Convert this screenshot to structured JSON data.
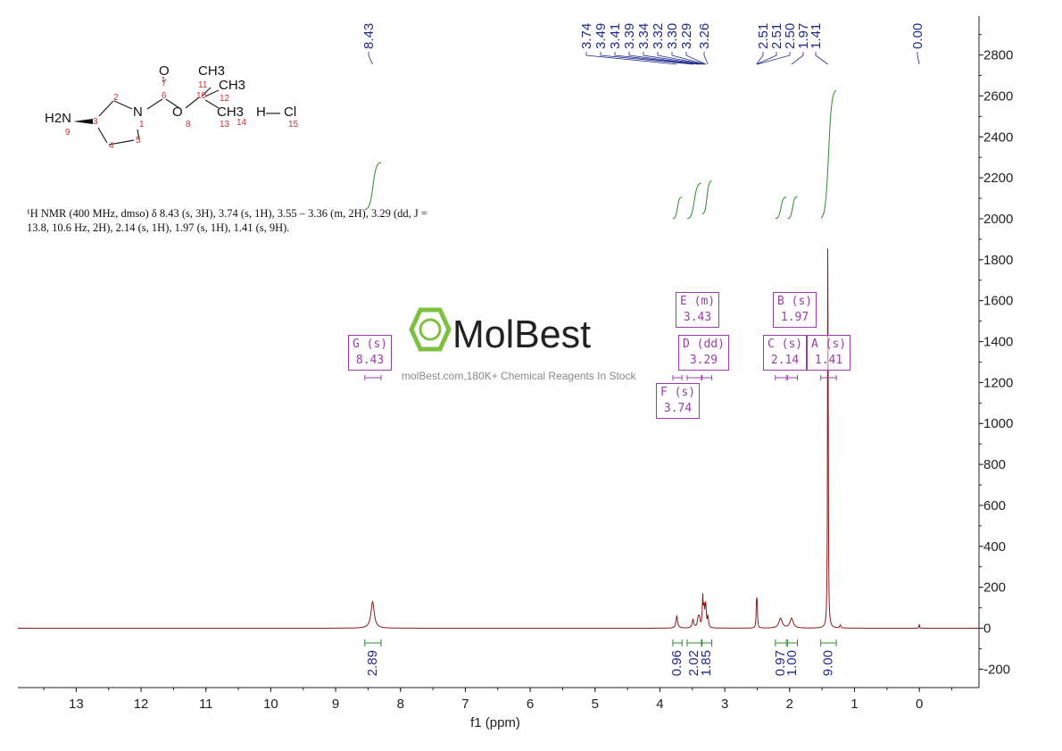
{
  "chart_data": {
    "type": "line",
    "title": "",
    "xlabel": "f1 (ppm)",
    "ylabel": "",
    "xlim": [
      13.9,
      -0.92
    ],
    "ylim": [
      -290,
      2990
    ],
    "x_reversed": true,
    "x_ticks": [
      "13",
      "12",
      "11",
      "10",
      "9",
      "8",
      "7",
      "6",
      "5",
      "4",
      "3",
      "2",
      "1",
      "0"
    ],
    "y_ticks": [
      "-200",
      "0",
      "200",
      "400",
      "600",
      "800",
      "1000",
      "1200",
      "1400",
      "1600",
      "1800",
      "2000",
      "2200",
      "2400",
      "2600",
      "2800"
    ],
    "grid": false,
    "colors": {
      "spectrum": "#8b1a1a",
      "integral": "#2e8b2e",
      "peak_label": "#1f2a8c",
      "multiplet_box": "#9b3fa8",
      "axis": "#222222"
    },
    "peaks": [
      {
        "ppm": 8.43,
        "height": 130,
        "width": 0.03
      },
      {
        "ppm": 3.74,
        "height": 60,
        "width": 0.015
      },
      {
        "ppm": 3.49,
        "height": 40,
        "width": 0.015
      },
      {
        "ppm": 3.41,
        "height": 45,
        "width": 0.015
      },
      {
        "ppm": 3.39,
        "height": 40,
        "width": 0.012
      },
      {
        "ppm": 3.34,
        "height": 150,
        "width": 0.008
      },
      {
        "ppm": 3.32,
        "height": 90,
        "width": 0.008
      },
      {
        "ppm": 3.3,
        "height": 80,
        "width": 0.008
      },
      {
        "ppm": 3.29,
        "height": 70,
        "width": 0.008
      },
      {
        "ppm": 3.26,
        "height": 55,
        "width": 0.01
      },
      {
        "ppm": 2.51,
        "height": 140,
        "width": 0.006
      },
      {
        "ppm": 2.5,
        "height": 100,
        "width": 0.006
      },
      {
        "ppm": 2.14,
        "height": 48,
        "width": 0.03
      },
      {
        "ppm": 1.97,
        "height": 48,
        "width": 0.03
      },
      {
        "ppm": 1.41,
        "height": 2280,
        "width": 0.005
      },
      {
        "ppm": 1.22,
        "height": 15,
        "width": 0.01
      },
      {
        "ppm": 0.0,
        "height": 25,
        "width": 0.004
      }
    ],
    "peak_labels": [
      "8.43",
      "3.74",
      "3.49",
      "3.41",
      "3.39",
      "3.34",
      "3.32",
      "3.30",
      "3.29",
      "3.26",
      "2.51",
      "2.51",
      "2.50",
      "1.97",
      "1.41",
      "0.00"
    ],
    "integrals": [
      {
        "from": 8.55,
        "to": 8.3,
        "value": "2.89"
      },
      {
        "from": 3.8,
        "to": 3.66,
        "value": "0.96"
      },
      {
        "from": 3.58,
        "to": 3.36,
        "value": "2.02"
      },
      {
        "from": 3.35,
        "to": 3.2,
        "value": "1.85"
      },
      {
        "from": 2.22,
        "to": 2.05,
        "value": "0.97"
      },
      {
        "from": 2.03,
        "to": 1.88,
        "value": "1.00"
      },
      {
        "from": 1.52,
        "to": 1.28,
        "value": "9.00"
      }
    ],
    "multiplets": [
      {
        "label": "G (s)",
        "shift": "8.43"
      },
      {
        "label": "E (m)",
        "shift": "3.43"
      },
      {
        "label": "D (dd)",
        "shift": "3.29"
      },
      {
        "label": "F (s)",
        "shift": "3.74"
      },
      {
        "label": "B (s)",
        "shift": "1.97"
      },
      {
        "label": "C (s)",
        "shift": "2.14"
      },
      {
        "label": "A (s)",
        "shift": "1.41"
      }
    ]
  },
  "description": {
    "line1": "¹H NMR (400 MHz, dmso) δ 8.43 (s, 3H), 3.74 (s, 1H), 3.55 – 3.36 (m, 2H), 3.29 (dd, J =",
    "line2": "13.8, 10.6 Hz, 2H), 2.14 (s, 1H), 1.97 (s, 1H), 1.41 (s, 9H)."
  },
  "molecule": {
    "atoms": [
      "O",
      "CH3",
      "CH3",
      "H2N",
      "N",
      "O",
      "CH3",
      "H",
      "Cl"
    ],
    "numbers": [
      "1",
      "2",
      "3",
      "4",
      "5",
      "6",
      "7",
      "8",
      "9",
      "10",
      "11",
      "12",
      "13",
      "14",
      "15"
    ]
  },
  "watermark": {
    "brand": "MolBest",
    "tagline": "molBest.com,180K+ Chemical Reagents In Stock"
  }
}
